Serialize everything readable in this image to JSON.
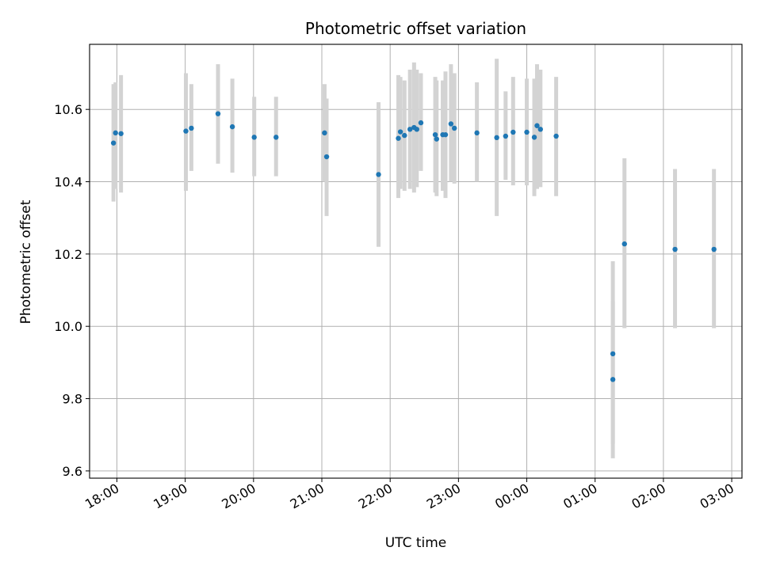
{
  "chart_data": {
    "type": "scatter",
    "title": "Photometric offset variation",
    "xlabel": "UTC time",
    "ylabel": "Photometric offset",
    "grid": true,
    "xlim": [
      17.6,
      27.15
    ],
    "ylim": [
      9.58,
      10.78
    ],
    "x_unit": "hours after 00:00 of first night",
    "xticks": [
      {
        "value": 18,
        "label": "18:00"
      },
      {
        "value": 19,
        "label": "19:00"
      },
      {
        "value": 20,
        "label": "20:00"
      },
      {
        "value": 21,
        "label": "21:00"
      },
      {
        "value": 22,
        "label": "22:00"
      },
      {
        "value": 23,
        "label": "23:00"
      },
      {
        "value": 24,
        "label": "00:00"
      },
      {
        "value": 25,
        "label": "01:00"
      },
      {
        "value": 26,
        "label": "02:00"
      },
      {
        "value": 27,
        "label": "03:00"
      }
    ],
    "yticks": [
      {
        "value": 9.6,
        "label": "9.6"
      },
      {
        "value": 9.8,
        "label": "9.8"
      },
      {
        "value": 10.0,
        "label": "10.0"
      },
      {
        "value": 10.2,
        "label": "10.2"
      },
      {
        "value": 10.4,
        "label": "10.4"
      },
      {
        "value": 10.6,
        "label": "10.6"
      }
    ],
    "colors": {
      "point": "#1f77b4",
      "errorbar": "#d3d3d3",
      "grid": "#b0b0b0"
    },
    "points": [
      {
        "x": 17.95,
        "y": 10.507,
        "lo": 10.345,
        "hi": 10.67
      },
      {
        "x": 17.98,
        "y": 10.535,
        "lo": 10.38,
        "hi": 10.675
      },
      {
        "x": 18.06,
        "y": 10.533,
        "lo": 10.37,
        "hi": 10.695
      },
      {
        "x": 19.01,
        "y": 10.54,
        "lo": 10.375,
        "hi": 10.7
      },
      {
        "x": 19.09,
        "y": 10.548,
        "lo": 10.43,
        "hi": 10.67
      },
      {
        "x": 19.48,
        "y": 10.588,
        "lo": 10.45,
        "hi": 10.725
      },
      {
        "x": 19.69,
        "y": 10.552,
        "lo": 10.425,
        "hi": 10.685
      },
      {
        "x": 20.01,
        "y": 10.523,
        "lo": 10.415,
        "hi": 10.635
      },
      {
        "x": 20.33,
        "y": 10.523,
        "lo": 10.415,
        "hi": 10.635
      },
      {
        "x": 21.04,
        "y": 10.535,
        "lo": 10.4,
        "hi": 10.67
      },
      {
        "x": 21.07,
        "y": 10.469,
        "lo": 10.305,
        "hi": 10.63
      },
      {
        "x": 21.83,
        "y": 10.42,
        "lo": 10.22,
        "hi": 10.62
      },
      {
        "x": 22.12,
        "y": 10.52,
        "lo": 10.355,
        "hi": 10.695
      },
      {
        "x": 22.15,
        "y": 10.538,
        "lo": 10.38,
        "hi": 10.69
      },
      {
        "x": 22.21,
        "y": 10.528,
        "lo": 10.375,
        "hi": 10.68
      },
      {
        "x": 22.29,
        "y": 10.545,
        "lo": 10.38,
        "hi": 10.71
      },
      {
        "x": 22.35,
        "y": 10.55,
        "lo": 10.37,
        "hi": 10.73
      },
      {
        "x": 22.39,
        "y": 10.545,
        "lo": 10.385,
        "hi": 10.71
      },
      {
        "x": 22.45,
        "y": 10.563,
        "lo": 10.43,
        "hi": 10.7
      },
      {
        "x": 22.66,
        "y": 10.53,
        "lo": 10.37,
        "hi": 10.69
      },
      {
        "x": 22.68,
        "y": 10.518,
        "lo": 10.36,
        "hi": 10.68
      },
      {
        "x": 22.77,
        "y": 10.53,
        "lo": 10.375,
        "hi": 10.68
      },
      {
        "x": 22.81,
        "y": 10.53,
        "lo": 10.355,
        "hi": 10.705
      },
      {
        "x": 22.89,
        "y": 10.56,
        "lo": 10.4,
        "hi": 10.725
      },
      {
        "x": 22.94,
        "y": 10.548,
        "lo": 10.395,
        "hi": 10.7
      },
      {
        "x": 23.27,
        "y": 10.535,
        "lo": 10.4,
        "hi": 10.675
      },
      {
        "x": 23.56,
        "y": 10.522,
        "lo": 10.305,
        "hi": 10.74
      },
      {
        "x": 23.69,
        "y": 10.526,
        "lo": 10.405,
        "hi": 10.65
      },
      {
        "x": 23.8,
        "y": 10.537,
        "lo": 10.39,
        "hi": 10.69
      },
      {
        "x": 24.0,
        "y": 10.537,
        "lo": 10.39,
        "hi": 10.685
      },
      {
        "x": 24.11,
        "y": 10.523,
        "lo": 10.36,
        "hi": 10.685
      },
      {
        "x": 24.15,
        "y": 10.555,
        "lo": 10.38,
        "hi": 10.725
      },
      {
        "x": 24.2,
        "y": 10.545,
        "lo": 10.385,
        "hi": 10.71
      },
      {
        "x": 24.43,
        "y": 10.526,
        "lo": 10.36,
        "hi": 10.69
      },
      {
        "x": 25.26,
        "y": 9.924,
        "lo": 9.675,
        "hi": 10.18
      },
      {
        "x": 25.26,
        "y": 9.853,
        "lo": 9.635,
        "hi": 10.07
      },
      {
        "x": 25.43,
        "y": 10.228,
        "lo": 9.995,
        "hi": 10.465
      },
      {
        "x": 26.17,
        "y": 10.213,
        "lo": 9.995,
        "hi": 10.435
      },
      {
        "x": 26.74,
        "y": 10.213,
        "lo": 9.995,
        "hi": 10.435
      }
    ]
  }
}
